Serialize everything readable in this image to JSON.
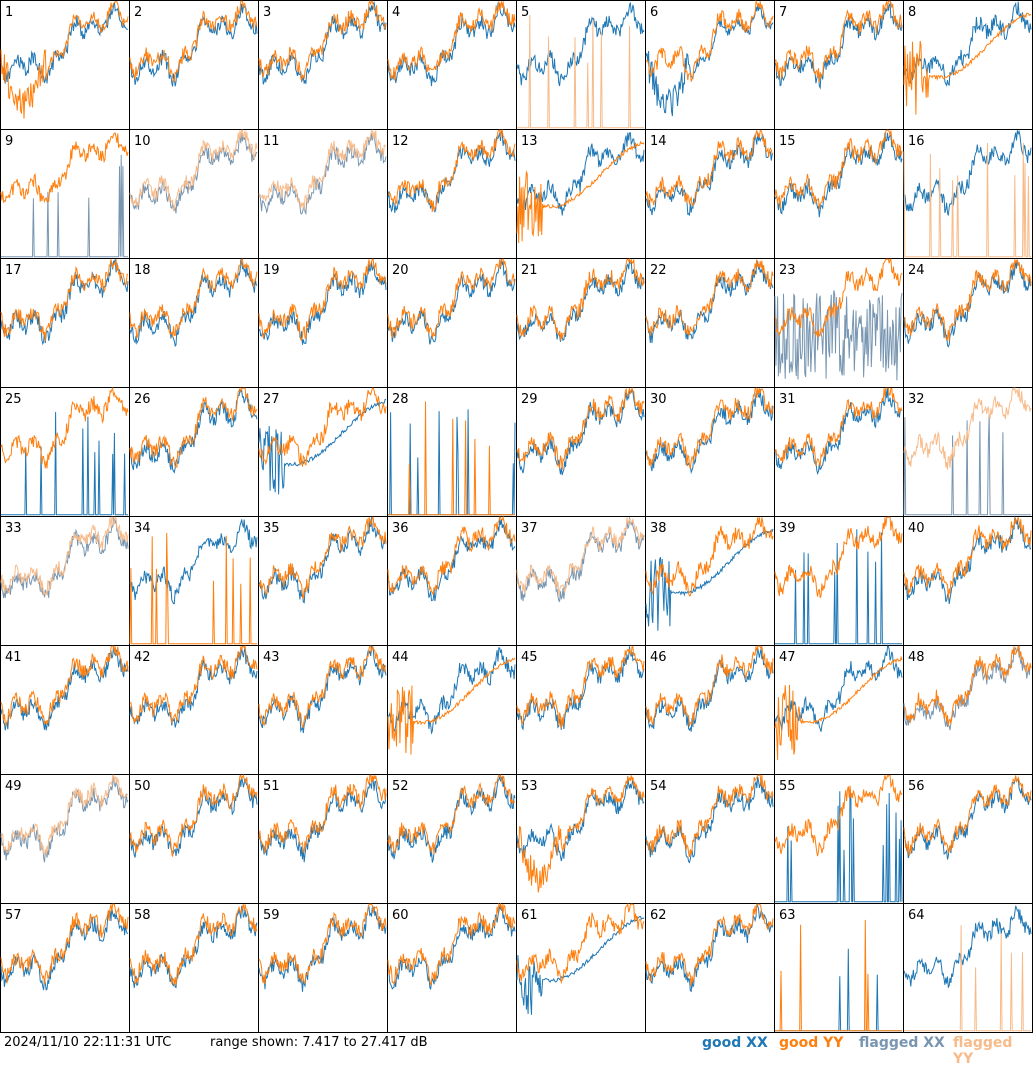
{
  "footer": {
    "timestamp": "2024/11/10 22:11:31 UTC",
    "range_text": "range shown: 7.417 to 27.417 dB",
    "legend": {
      "good_xx": "good XX",
      "good_yy": "good YY",
      "flagged_xx": "flagged XX",
      "flagged_yy": "flagged YY"
    }
  },
  "colors": {
    "good_xx": "#1f77b4",
    "good_yy": "#ff7f0e",
    "flagged_xx": "#7896b1",
    "flagged_yy": "#f7bb8a",
    "grid": "#000000"
  },
  "chart_data": {
    "type": "line",
    "layout": "8x8 small multiples",
    "ylim": [
      7.417,
      27.417
    ],
    "panel_labels": [
      "1",
      "2",
      "3",
      "4",
      "5",
      "6",
      "7",
      "8",
      "9",
      "10",
      "11",
      "12",
      "13",
      "14",
      "15",
      "16",
      "17",
      "18",
      "19",
      "20",
      "21",
      "22",
      "23",
      "24",
      "25",
      "26",
      "27",
      "28",
      "29",
      "30",
      "31",
      "32",
      "33",
      "34",
      "35",
      "36",
      "37",
      "38",
      "39",
      "40",
      "41",
      "42",
      "43",
      "44",
      "45",
      "46",
      "47",
      "48",
      "49",
      "50",
      "51",
      "52",
      "53",
      "54",
      "55",
      "56",
      "57",
      "58",
      "59",
      "60",
      "61",
      "62",
      "63",
      "64"
    ],
    "panels": [
      {
        "xx": "good",
        "yy": "good",
        "xx_mode": "normal",
        "yy_mode": "drop"
      },
      {
        "xx": "good",
        "yy": "good"
      },
      {
        "xx": "good",
        "yy": "good"
      },
      {
        "xx": "good",
        "yy": "good"
      },
      {
        "xx": "good",
        "yy": "flagged",
        "yy_mode": "spikes"
      },
      {
        "xx": "good",
        "yy": "good",
        "xx_mode": "drop"
      },
      {
        "xx": "good",
        "yy": "good"
      },
      {
        "xx": "good",
        "yy": "good",
        "yy_mode": "smooth"
      },
      {
        "xx": "flagged",
        "yy": "good",
        "xx_mode": "spikes"
      },
      {
        "xx": "flagged",
        "yy": "flagged"
      },
      {
        "xx": "flagged",
        "yy": "flagged"
      },
      {
        "xx": "good",
        "yy": "good"
      },
      {
        "xx": "good",
        "yy": "good",
        "yy_mode": "smooth"
      },
      {
        "xx": "good",
        "yy": "good"
      },
      {
        "xx": "good",
        "yy": "good"
      },
      {
        "xx": "good",
        "yy": "flagged",
        "yy_mode": "spikes"
      },
      {
        "xx": "good",
        "yy": "good"
      },
      {
        "xx": "good",
        "yy": "good"
      },
      {
        "xx": "good",
        "yy": "good"
      },
      {
        "xx": "good",
        "yy": "good"
      },
      {
        "xx": "good",
        "yy": "good"
      },
      {
        "xx": "good",
        "yy": "good"
      },
      {
        "xx": "flagged",
        "yy": "good",
        "xx_mode": "noisy"
      },
      {
        "xx": "good",
        "yy": "good"
      },
      {
        "xx": "good",
        "yy": "good",
        "xx_mode": "spikes"
      },
      {
        "xx": "good",
        "yy": "good"
      },
      {
        "xx": "good",
        "yy": "good",
        "xx_mode": "smooth"
      },
      {
        "xx": "good",
        "yy": "good",
        "xx_mode": "spikes",
        "yy_mode": "spikes"
      },
      {
        "xx": "good",
        "yy": "good"
      },
      {
        "xx": "good",
        "yy": "good"
      },
      {
        "xx": "good",
        "yy": "good"
      },
      {
        "xx": "flagged",
        "yy": "flagged",
        "xx_mode": "spikes"
      },
      {
        "xx": "flagged",
        "yy": "flagged"
      },
      {
        "xx": "good",
        "yy": "good",
        "yy_mode": "spikes"
      },
      {
        "xx": "good",
        "yy": "good"
      },
      {
        "xx": "good",
        "yy": "good"
      },
      {
        "xx": "flagged",
        "yy": "flagged"
      },
      {
        "xx": "good",
        "yy": "good",
        "xx_mode": "smooth"
      },
      {
        "xx": "good",
        "yy": "good",
        "xx_mode": "spikes"
      },
      {
        "xx": "good",
        "yy": "good"
      },
      {
        "xx": "good",
        "yy": "good"
      },
      {
        "xx": "good",
        "yy": "good"
      },
      {
        "xx": "good",
        "yy": "good"
      },
      {
        "xx": "good",
        "yy": "good",
        "yy_mode": "smooth"
      },
      {
        "xx": "good",
        "yy": "good"
      },
      {
        "xx": "good",
        "yy": "good"
      },
      {
        "xx": "good",
        "yy": "good",
        "yy_mode": "smooth"
      },
      {
        "xx": "flagged",
        "yy": "good"
      },
      {
        "xx": "flagged",
        "yy": "flagged"
      },
      {
        "xx": "good",
        "yy": "good"
      },
      {
        "xx": "good",
        "yy": "good"
      },
      {
        "xx": "good",
        "yy": "good"
      },
      {
        "xx": "good",
        "yy": "good",
        "yy_mode": "drop"
      },
      {
        "xx": "good",
        "yy": "good"
      },
      {
        "xx": "good",
        "yy": "good",
        "xx_mode": "spikes"
      },
      {
        "xx": "good",
        "yy": "good"
      },
      {
        "xx": "good",
        "yy": "good"
      },
      {
        "xx": "good",
        "yy": "good"
      },
      {
        "xx": "good",
        "yy": "good"
      },
      {
        "xx": "good",
        "yy": "good"
      },
      {
        "xx": "good",
        "yy": "good",
        "xx_mode": "smooth"
      },
      {
        "xx": "good",
        "yy": "good"
      },
      {
        "xx": "good",
        "yy": "good",
        "yy_mode": "spikes",
        "xx_mode": "spikes"
      },
      {
        "xx": "good",
        "yy": "flagged",
        "yy_mode": "spikes"
      }
    ]
  }
}
